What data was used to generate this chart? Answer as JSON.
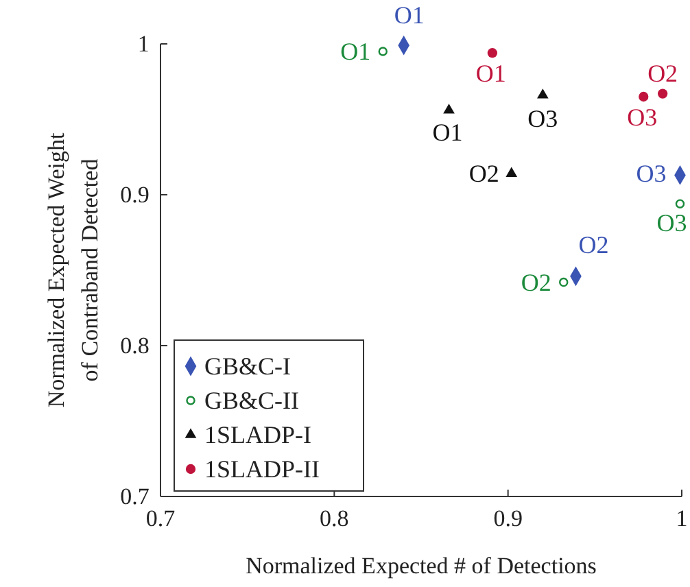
{
  "chart_data": {
    "type": "scatter",
    "xlabel": "Normalized Expected # of Detections",
    "ylabel": "Normalized Expected Weight\nof Contraband Detected",
    "xlim": [
      0.7,
      1.0
    ],
    "ylim": [
      0.7,
      1.0
    ],
    "xticks": [
      0.7,
      0.8,
      0.9,
      1
    ],
    "yticks": [
      0.7,
      0.8,
      0.9,
      1
    ],
    "grid": false,
    "legend": "bottom left",
    "series": [
      {
        "name": "GB&C-I",
        "color": "#3a54b4",
        "marker": "diamond",
        "x": [
          0.84,
          0.939,
          0.999
        ],
        "values": [
          0.999,
          0.846,
          0.913
        ],
        "value_labels": [
          "O1",
          "O2",
          "O3"
        ]
      },
      {
        "name": "GB&C-II",
        "color": "#1a8a3a",
        "marker": "circle",
        "x": [
          0.828,
          0.932,
          0.999
        ],
        "values": [
          0.995,
          0.842,
          0.894
        ],
        "value_labels": [
          "O1",
          "O2",
          "O3"
        ]
      },
      {
        "name": "1SLADP-I",
        "color": "#111111",
        "marker": "triangle",
        "x": [
          0.866,
          0.902,
          0.92
        ],
        "values": [
          0.956,
          0.914,
          0.966
        ],
        "value_labels": [
          "O1",
          "O2",
          "O3"
        ]
      },
      {
        "name": "1SLADP-II",
        "color": "#c0143c",
        "marker": "circle",
        "x": [
          0.891,
          0.989,
          0.978
        ],
        "values": [
          0.994,
          0.967,
          0.965
        ],
        "value_labels": [
          "O1",
          "O2",
          "O3"
        ]
      }
    ]
  }
}
